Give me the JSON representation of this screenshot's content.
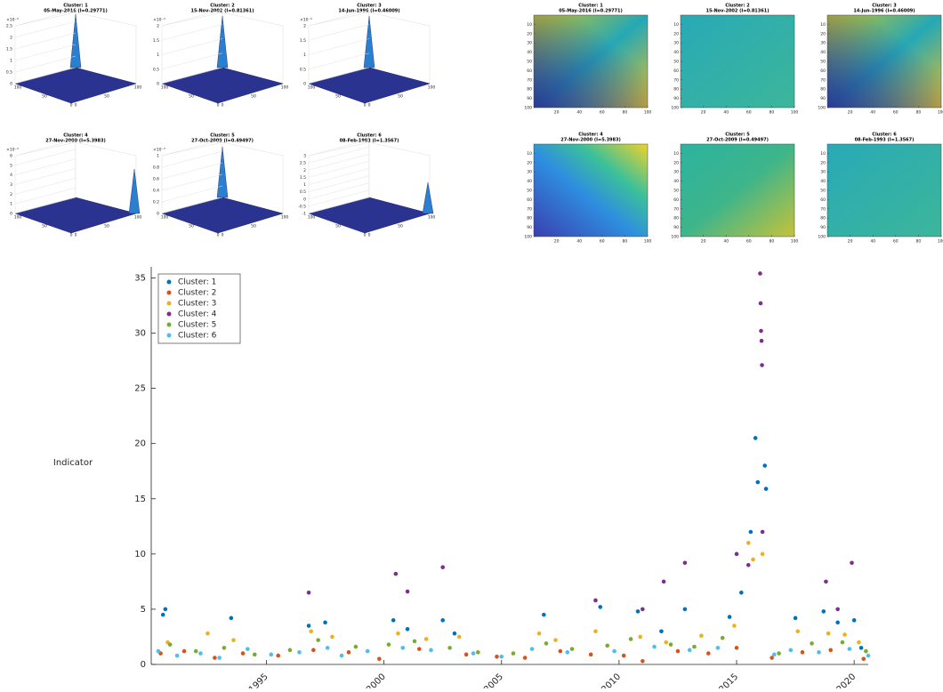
{
  "surface_panels": [
    {
      "title": "Cluster: 1",
      "subtitle": "05-May-2016 (I=0.29771)",
      "zticks": [
        0,
        0.5,
        1,
        1.5,
        2,
        2.5
      ],
      "exponent": "×10⁻³"
    },
    {
      "title": "Cluster: 2",
      "subtitle": "15-Nov-2002 (I=0.81361)",
      "zticks": [
        0,
        0.5,
        1,
        1.5,
        2
      ],
      "exponent": "×10⁻³"
    },
    {
      "title": "Cluster: 3",
      "subtitle": "14-Jun-1996 (I=0.46009)",
      "zticks": [
        0,
        0.5,
        1,
        1.5,
        2
      ],
      "exponent": "×10⁻³"
    },
    {
      "title": "Cluster: 4",
      "subtitle": "27-Nov-2000 (I=5.3983)",
      "zticks": [
        0,
        1,
        2,
        3,
        4,
        5,
        6
      ],
      "exponent": "×10⁻³"
    },
    {
      "title": "Cluster: 5",
      "subtitle": "27-Oct-2009 (I=0.49497)",
      "zticks": [
        0,
        0.2,
        0.4,
        0.6,
        0.8,
        1
      ],
      "exponent": "×10⁻³"
    },
    {
      "title": "Cluster: 6",
      "subtitle": "08-Feb-1993 (I=1.3567)",
      "zticks": [
        -1,
        -0.5,
        0,
        0.5,
        1,
        1.5,
        2,
        2.5,
        3
      ]
    }
  ],
  "surface_axis_ticks": [
    0,
    50,
    100
  ],
  "heatmap_panels": [
    {
      "title": "Cluster: 1",
      "subtitle": "05-May-2016 (I=0.29771)"
    },
    {
      "title": "Cluster: 2",
      "subtitle": "15-Nov-2002 (I=0.81361)"
    },
    {
      "title": "Cluster: 3",
      "subtitle": "14-Jun-1996 (I=0.46009)"
    },
    {
      "title": "Cluster: 4",
      "subtitle": "27-Nov-2000 (I=5.3983)"
    },
    {
      "title": "Cluster: 5",
      "subtitle": "27-Oct-2009 (I=0.49497)"
    },
    {
      "title": "Cluster: 6",
      "subtitle": "08-Feb-1993 (I=1.3567)"
    }
  ],
  "heatmap_xticks": [
    20,
    40,
    60,
    80,
    100
  ],
  "heatmap_yticks": [
    10,
    20,
    30,
    40,
    50,
    60,
    70,
    80,
    90,
    100
  ],
  "chart_data": {
    "type": "scatter",
    "ylabel": "Indicator",
    "xlim": [
      1990.1,
      2020.6
    ],
    "ylim": [
      0,
      36
    ],
    "xticks": [
      1995,
      2000,
      2005,
      2010,
      2015,
      2020
    ],
    "yticks": [
      0,
      5,
      10,
      15,
      20,
      25,
      30,
      35
    ],
    "legend": "northwest",
    "series": [
      {
        "name": "Cluster: 1",
        "color": "#0072bd",
        "x": [
          1990.6,
          1990.7,
          1993.5,
          1996.8,
          1997.5,
          2000.4,
          2001.0,
          2002.5,
          2003.0,
          2006.8,
          2009.2,
          2010.8,
          2011.8,
          2012.8,
          2014.7,
          2015.2,
          2015.6,
          2015.8,
          2015.9,
          2016.2,
          2016.25,
          2017.5,
          2018.7,
          2019.3,
          2020.0,
          2020.3
        ],
        "values": [
          4.5,
          5.0,
          4.2,
          3.5,
          3.8,
          4.0,
          3.2,
          4.0,
          2.8,
          4.5,
          5.2,
          4.8,
          3.0,
          5.0,
          4.3,
          6.5,
          12,
          20.5,
          16.5,
          18,
          15.9,
          4.2,
          4.8,
          3.8,
          4.0,
          1.5
        ]
      },
      {
        "name": "Cluster: 2",
        "color": "#d95319",
        "x": [
          1990.5,
          1991.5,
          1992.8,
          1994.0,
          1995.5,
          1997.0,
          1998.5,
          1999.8,
          2001.5,
          2003.5,
          2004.8,
          2006.0,
          2007.5,
          2008.8,
          2010.2,
          2011.0,
          2012.5,
          2013.8,
          2015.0,
          2016.5,
          2017.8,
          2019.0,
          2020.4
        ],
        "values": [
          1.0,
          1.2,
          0.6,
          1.0,
          0.8,
          1.3,
          1.1,
          0.5,
          1.4,
          0.9,
          0.7,
          0.6,
          1.2,
          0.9,
          0.8,
          0.3,
          1.2,
          1.0,
          1.5,
          0.6,
          1.1,
          1.3,
          0.5
        ]
      },
      {
        "name": "Cluster: 3",
        "color": "#edb120",
        "x": [
          1990.8,
          1992.5,
          1993.6,
          1996.9,
          1997.8,
          2000.6,
          2001.8,
          2003.2,
          2006.6,
          2007.3,
          2009.0,
          2010.9,
          2012.0,
          2013.5,
          2014.9,
          2015.5,
          2015.7,
          2016.1,
          2017.6,
          2018.9,
          2019.6,
          2020.2
        ],
        "values": [
          2.0,
          2.8,
          2.2,
          3.0,
          2.5,
          2.8,
          2.3,
          2.5,
          2.8,
          2.2,
          3.0,
          2.5,
          2.0,
          2.6,
          3.5,
          11,
          9.5,
          10.0,
          3.0,
          2.8,
          2.7,
          2.0
        ]
      },
      {
        "name": "Cluster: 4",
        "color": "#7e2f8e",
        "x": [
          1996.8,
          2000.5,
          2001.0,
          2002.5,
          2009.0,
          2011.0,
          2011.9,
          2012.8,
          2015.0,
          2015.5,
          2016.0,
          2016.02,
          2016.04,
          2016.06,
          2016.08,
          2016.1,
          2018.8,
          2019.3,
          2019.9
        ],
        "values": [
          6.5,
          8.2,
          6.6,
          8.8,
          5.8,
          5.0,
          7.5,
          9.2,
          10.0,
          9.0,
          35.4,
          32.7,
          30.2,
          29.3,
          27.1,
          12.0,
          7.5,
          5.0,
          9.2
        ]
      },
      {
        "name": "Cluster: 5",
        "color": "#77ac30",
        "x": [
          1990.9,
          1992.0,
          1993.2,
          1994.5,
          1996.0,
          1997.2,
          1998.8,
          2000.2,
          2001.3,
          2002.8,
          2004.0,
          2005.5,
          2006.9,
          2008.0,
          2009.5,
          2010.5,
          2012.2,
          2013.2,
          2014.4,
          2016.8,
          2018.2,
          2019.5,
          2020.5
        ],
        "values": [
          1.8,
          1.2,
          1.5,
          0.9,
          1.3,
          2.2,
          1.6,
          1.8,
          2.1,
          1.5,
          1.1,
          1.0,
          1.9,
          1.4,
          1.7,
          2.3,
          1.8,
          1.6,
          2.4,
          1.0,
          1.9,
          2.0,
          1.2
        ]
      },
      {
        "name": "Cluster: 6",
        "color": "#4dbeee",
        "x": [
          1990.4,
          1991.2,
          1992.2,
          1993.0,
          1994.2,
          1995.2,
          1996.4,
          1997.6,
          1998.2,
          1999.3,
          2000.8,
          2002.0,
          2003.8,
          2005.0,
          2006.3,
          2007.8,
          2009.8,
          2011.5,
          2013.0,
          2014.2,
          2016.6,
          2017.3,
          2018.5,
          2019.8,
          2020.6
        ],
        "values": [
          1.2,
          0.8,
          1.0,
          0.6,
          1.4,
          0.9,
          1.1,
          1.5,
          0.8,
          1.2,
          1.5,
          1.3,
          1.0,
          0.7,
          1.4,
          1.1,
          1.2,
          1.6,
          1.3,
          1.5,
          0.9,
          1.3,
          1.1,
          1.4,
          0.8
        ]
      }
    ]
  }
}
